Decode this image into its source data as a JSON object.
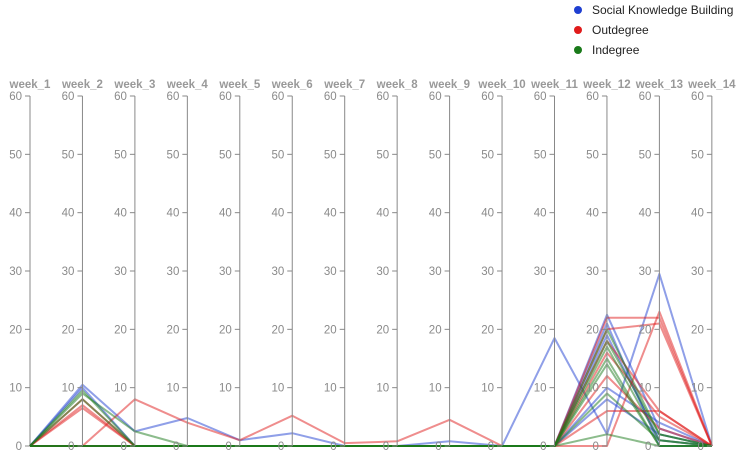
{
  "legend": [
    {
      "label": "Social Knowledge Building",
      "color": "#1f3fd1"
    },
    {
      "label": "Outdegree",
      "color": "#e01b1b"
    },
    {
      "label": "Indegree",
      "color": "#1a7a1a"
    }
  ],
  "chart_data": {
    "type": "parallel-coordinates",
    "axes": [
      "week_1",
      "week_2",
      "week_3",
      "week_4",
      "week_5",
      "week_6",
      "week_7",
      "week_8",
      "week_9",
      "week_10",
      "week_11",
      "week_12",
      "week_13",
      "week_14"
    ],
    "ylim": [
      0,
      60
    ],
    "ticks": [
      0,
      10,
      20,
      30,
      40,
      50,
      60
    ],
    "tick_labels": [
      "0",
      "10",
      "20",
      "30",
      "40",
      "50",
      "60"
    ],
    "series": [
      {
        "group": "Social Knowledge Building",
        "values": [
          0,
          10.5,
          2.5,
          4.8,
          1,
          2.2,
          0,
          0,
          0.8,
          0,
          18.5,
          2,
          29.5,
          0
        ]
      },
      {
        "group": "Social Knowledge Building",
        "values": [
          0,
          10,
          0,
          0,
          0,
          0,
          0,
          0,
          0,
          0,
          0,
          10,
          4,
          0
        ]
      },
      {
        "group": "Social Knowledge Building",
        "values": [
          0,
          0,
          0,
          0,
          0,
          0,
          0,
          0,
          0,
          0,
          0,
          22.5,
          3,
          0
        ]
      },
      {
        "group": "Social Knowledge Building",
        "values": [
          0,
          0,
          0,
          0,
          0,
          0,
          0,
          0,
          0,
          0,
          0,
          21,
          0,
          0
        ]
      },
      {
        "group": "Social Knowledge Building",
        "values": [
          0,
          0,
          0,
          0,
          0,
          0,
          0,
          0,
          0,
          0,
          0,
          19,
          1,
          0
        ]
      },
      {
        "group": "Social Knowledge Building",
        "values": [
          0,
          0,
          0,
          0,
          0,
          0,
          0,
          0,
          0,
          0,
          0,
          8,
          2,
          0
        ]
      },
      {
        "group": "Outdegree",
        "values": [
          0,
          8,
          0,
          0,
          0,
          0,
          0,
          0,
          0,
          0,
          0,
          22,
          22,
          0
        ]
      },
      {
        "group": "Outdegree",
        "values": [
          0,
          0,
          8,
          4,
          1,
          5.2,
          0.5,
          0.8,
          4.5,
          0,
          0,
          0,
          23,
          0
        ]
      },
      {
        "group": "Outdegree",
        "values": [
          0,
          7,
          0,
          0,
          0,
          0,
          0,
          0,
          0,
          0,
          0,
          20,
          21,
          0
        ]
      },
      {
        "group": "Outdegree",
        "values": [
          0,
          6.5,
          0,
          0,
          0,
          0,
          0,
          0,
          0,
          0,
          0,
          18,
          6,
          0
        ]
      },
      {
        "group": "Outdegree",
        "values": [
          0,
          0,
          0,
          0,
          0,
          0,
          0,
          0,
          0,
          0,
          0,
          16,
          5,
          0
        ]
      },
      {
        "group": "Outdegree",
        "values": [
          0,
          0,
          0,
          0,
          0,
          0,
          0,
          0,
          0,
          0,
          0,
          6,
          6,
          0
        ]
      },
      {
        "group": "Outdegree",
        "values": [
          0,
          0,
          0,
          0,
          0,
          0,
          0,
          0,
          0,
          0,
          0,
          12,
          3,
          0
        ]
      },
      {
        "group": "Indegree",
        "values": [
          0,
          9.5,
          0,
          0,
          0,
          0,
          0,
          0,
          0,
          0,
          0,
          18,
          2,
          0
        ]
      },
      {
        "group": "Indegree",
        "values": [
          0,
          9,
          2.5,
          0,
          0,
          0,
          0,
          0,
          0,
          0,
          0,
          20,
          2,
          0
        ]
      },
      {
        "group": "Indegree",
        "values": [
          0,
          8,
          0,
          0,
          0,
          0,
          0,
          0,
          0,
          0,
          0,
          17,
          1,
          0
        ]
      },
      {
        "group": "Indegree",
        "values": [
          0,
          0,
          0,
          0,
          0,
          0,
          0,
          0,
          0,
          0,
          0,
          15,
          0,
          0
        ]
      },
      {
        "group": "Indegree",
        "values": [
          0,
          0,
          0,
          0,
          0,
          0,
          0,
          0,
          0,
          0,
          0,
          14,
          0,
          0
        ]
      },
      {
        "group": "Indegree",
        "values": [
          0,
          0,
          0,
          0,
          0,
          0,
          0,
          0,
          0,
          0,
          0,
          9,
          1,
          0
        ]
      },
      {
        "group": "Indegree",
        "values": [
          0,
          0,
          0,
          0,
          0,
          0,
          0,
          0,
          0,
          0,
          0,
          2,
          0,
          0
        ]
      }
    ],
    "grid": false,
    "legend_position": "top-right"
  }
}
